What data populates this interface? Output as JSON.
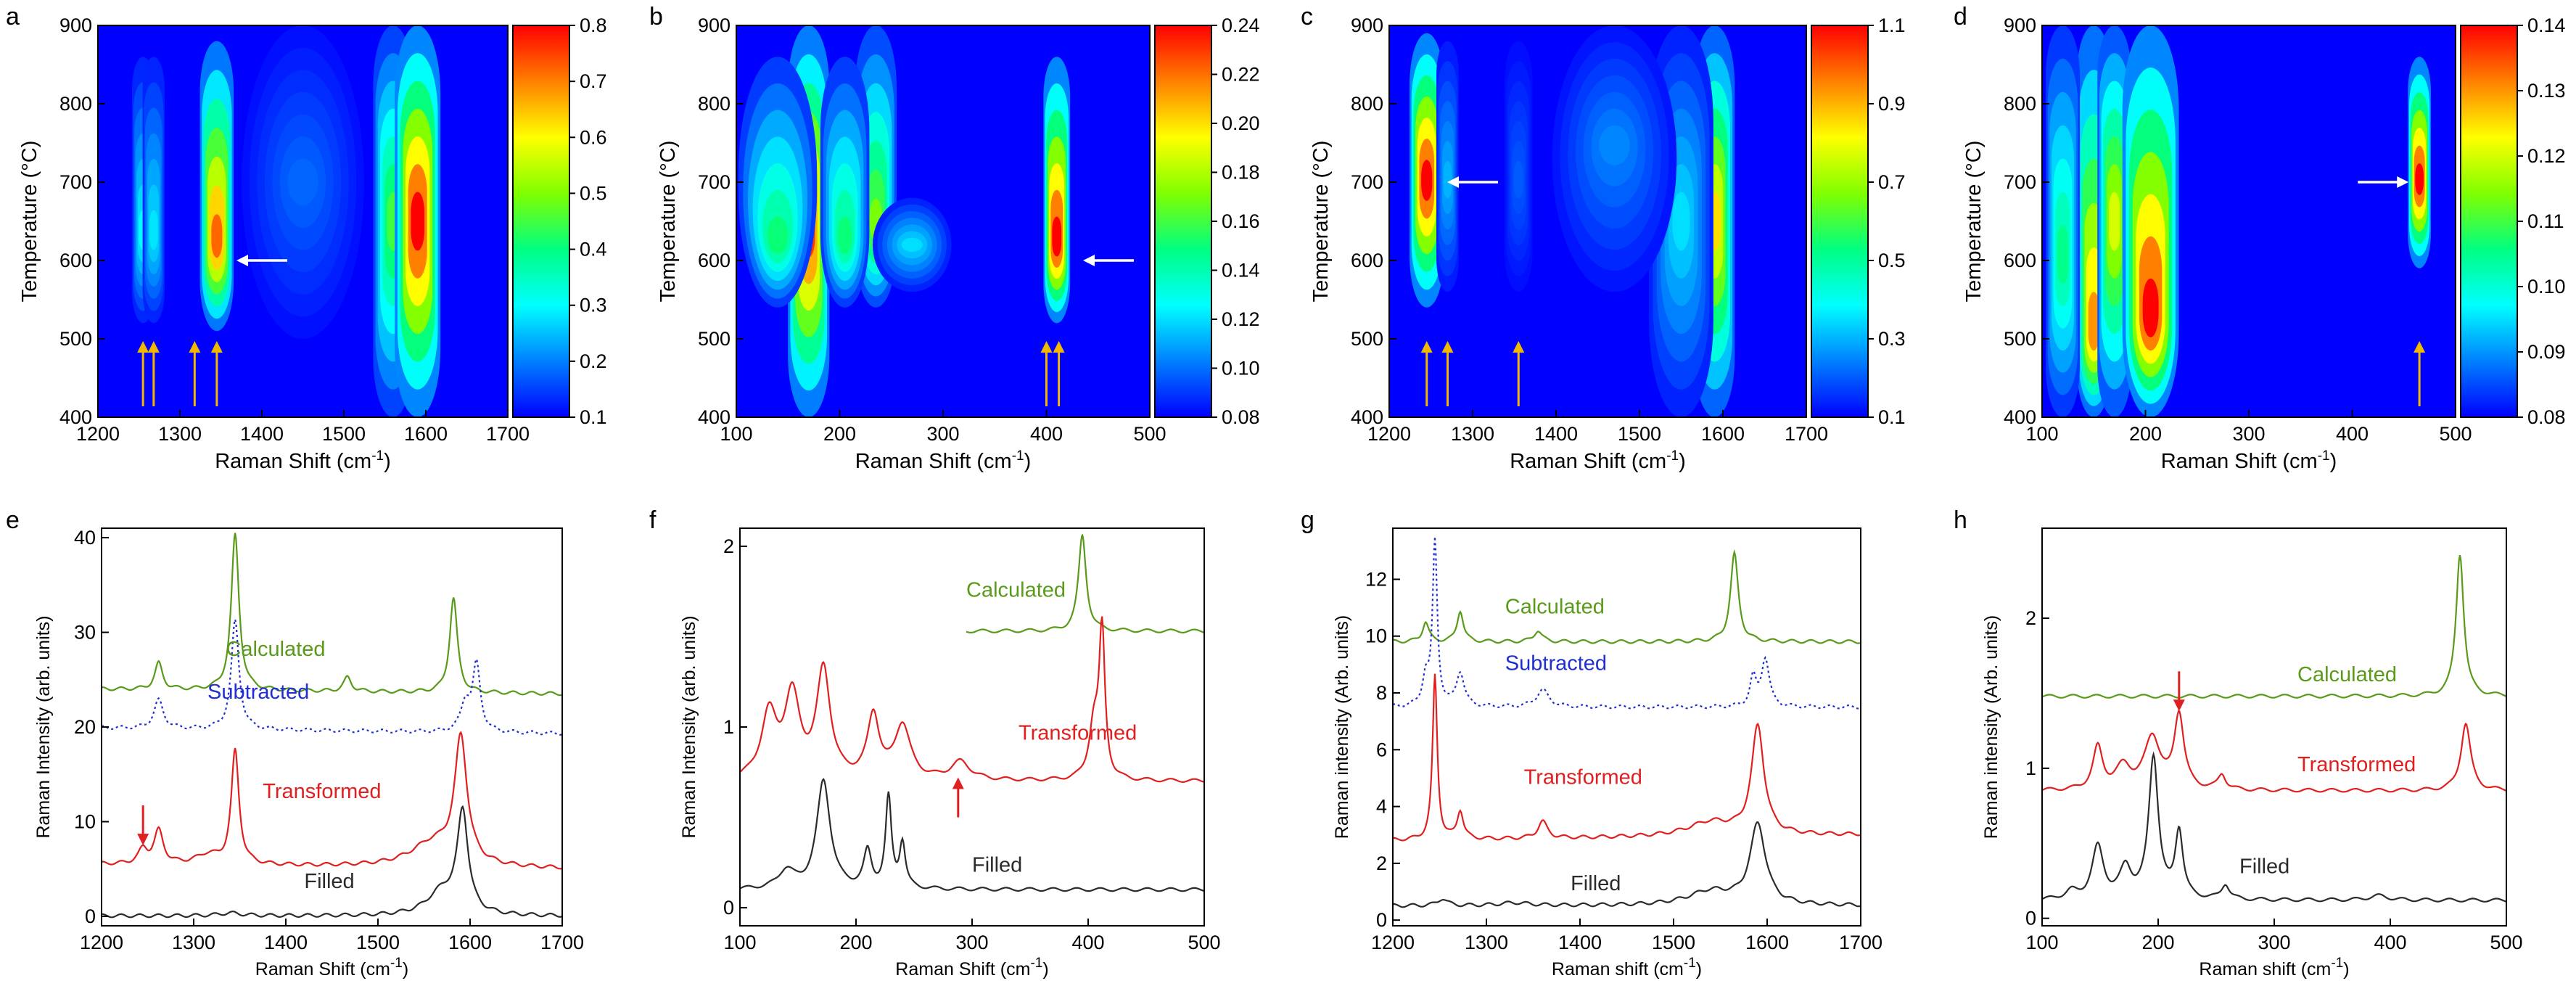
{
  "colormap": [
    "#0000ff",
    "#0080ff",
    "#00ffff",
    "#00ff80",
    "#80ff00",
    "#ffff00",
    "#ff8000",
    "#ff0000"
  ],
  "colors": {
    "calculated": "#5a9a1a",
    "subtracted": "#1f2fd0",
    "transformed": "#e02020",
    "filled": "#2b2b2b",
    "marker_arrow": "#f2b700",
    "red_arrow": "#e02020"
  },
  "chart_data": [
    {
      "panel": "a",
      "type": "heatmap",
      "xlabel": "Raman Shift (cm⁻¹)",
      "ylabel": "Temperature (°C)",
      "xlim": [
        1200,
        1700
      ],
      "ylim": [
        400,
        900
      ],
      "xticks": [
        "1200",
        "1300",
        "1400",
        "1500",
        "1600",
        "1700"
      ],
      "yticks": [
        "400",
        "500",
        "600",
        "700",
        "800",
        "900"
      ],
      "colorbar": {
        "range": [
          0.1,
          0.8
        ],
        "ticks": [
          "0.1",
          "0.2",
          "0.3",
          "0.4",
          "0.5",
          "0.6",
          "0.7",
          "0.8"
        ]
      },
      "bands": [
        {
          "x": 1255,
          "width": 6,
          "tmin": 520,
          "tmax": 860,
          "peak": 0.3,
          "peak_t": 630
        },
        {
          "x": 1268,
          "width": 6,
          "tmin": 520,
          "tmax": 860,
          "peak": 0.28,
          "peak_t": 630
        },
        {
          "x": 1345,
          "width": 10,
          "tmin": 510,
          "tmax": 880,
          "peak": 0.72,
          "peak_t": 620
        },
        {
          "x": 1560,
          "width": 12,
          "tmin": 400,
          "tmax": 900,
          "peak": 0.45,
          "peak_t": 650
        },
        {
          "x": 1590,
          "width": 14,
          "tmin": 400,
          "tmax": 900,
          "peak": 0.8,
          "peak_t": 650
        },
        {
          "x": 1450,
          "width": 40,
          "tmin": 500,
          "tmax": 900,
          "peak": 0.18,
          "peak_t": 700
        }
      ],
      "white_arrows": [
        {
          "x": 1400,
          "t": 600,
          "dir": "left"
        }
      ],
      "marker_arrows": [
        1255,
        1268,
        1318,
        1345
      ]
    },
    {
      "panel": "b",
      "type": "heatmap",
      "xlabel": "Raman Shift (cm⁻¹)",
      "ylabel": "Temperature (°C)",
      "xlim": [
        100,
        500
      ],
      "ylim": [
        400,
        900
      ],
      "xticks": [
        "100",
        "200",
        "300",
        "400",
        "500"
      ],
      "yticks": [
        "400",
        "500",
        "600",
        "700",
        "800",
        "900"
      ],
      "colorbar": {
        "range": [
          0.08,
          0.24
        ],
        "ticks": [
          "0.08",
          "0.10",
          "0.12",
          "0.14",
          "0.16",
          "0.18",
          "0.20",
          "0.22",
          "0.24"
        ]
      },
      "bands": [
        {
          "x": 170,
          "width": 10,
          "tmin": 400,
          "tmax": 900,
          "peak": 0.23,
          "peak_t": 640
        },
        {
          "x": 235,
          "width": 10,
          "tmin": 540,
          "tmax": 900,
          "peak": 0.17,
          "peak_t": 640
        },
        {
          "x": 140,
          "width": 20,
          "tmin": 540,
          "tmax": 860,
          "peak": 0.15,
          "peak_t": 620
        },
        {
          "x": 205,
          "width": 12,
          "tmin": 540,
          "tmax": 860,
          "peak": 0.15,
          "peak_t": 620
        },
        {
          "x": 410,
          "width": 6,
          "tmin": 520,
          "tmax": 860,
          "peak": 0.24,
          "peak_t": 620
        },
        {
          "x": 270,
          "width": 20,
          "tmin": 560,
          "tmax": 680,
          "peak": 0.12,
          "peak_t": 620
        }
      ],
      "white_arrows": [
        {
          "x": 460,
          "t": 600,
          "dir": "left"
        }
      ],
      "marker_arrows": [
        400,
        412
      ]
    },
    {
      "panel": "c",
      "type": "heatmap",
      "xlabel": "Raman Shift (cm⁻¹)",
      "ylabel": "Temperature (°C)",
      "xlim": [
        1200,
        1700
      ],
      "ylim": [
        400,
        900
      ],
      "xticks": [
        "1200",
        "1300",
        "1400",
        "1500",
        "1600",
        "1700"
      ],
      "yticks": [
        "400",
        "500",
        "600",
        "700",
        "800",
        "900"
      ],
      "colorbar": {
        "range": [
          0.1,
          1.1
        ],
        "ticks": [
          "0.1",
          "0.3",
          "0.5",
          "0.7",
          "0.9",
          "1.1"
        ]
      },
      "bands": [
        {
          "x": 1245,
          "width": 10,
          "tmin": 540,
          "tmax": 890,
          "peak": 1.1,
          "peak_t": 700
        },
        {
          "x": 1270,
          "width": 6,
          "tmin": 560,
          "tmax": 880,
          "peak": 0.3,
          "peak_t": 700
        },
        {
          "x": 1355,
          "width": 8,
          "tmin": 560,
          "tmax": 880,
          "peak": 0.2,
          "peak_t": 700
        },
        {
          "x": 1590,
          "width": 12,
          "tmin": 400,
          "tmax": 900,
          "peak": 0.85,
          "peak_t": 650
        },
        {
          "x": 1550,
          "width": 20,
          "tmin": 400,
          "tmax": 900,
          "peak": 0.35,
          "peak_t": 650
        },
        {
          "x": 1470,
          "width": 40,
          "tmin": 560,
          "tmax": 900,
          "peak": 0.25,
          "peak_t": 750
        }
      ],
      "white_arrows": [
        {
          "x": 1300,
          "t": 700,
          "dir": "left"
        }
      ],
      "marker_arrows": [
        1245,
        1270,
        1355
      ]
    },
    {
      "panel": "d",
      "type": "heatmap",
      "xlabel": "Raman Shift (cm⁻¹)",
      "ylabel": "Temperature (°C)",
      "xlim": [
        100,
        500
      ],
      "ylim": [
        400,
        900
      ],
      "xticks": [
        "100",
        "200",
        "300",
        "400",
        "500"
      ],
      "yticks": [
        "400",
        "500",
        "600",
        "700",
        "800",
        "900"
      ],
      "colorbar": {
        "range": [
          0.08,
          0.14
        ],
        "ticks": [
          "0.08",
          "0.09",
          "0.10",
          "0.11",
          "0.12",
          "0.13",
          "0.14"
        ]
      },
      "bands": [
        {
          "x": 150,
          "width": 8,
          "tmin": 400,
          "tmax": 900,
          "peak": 0.13,
          "peak_t": 500
        },
        {
          "x": 170,
          "width": 8,
          "tmin": 400,
          "tmax": 900,
          "peak": 0.12,
          "peak_t": 650
        },
        {
          "x": 205,
          "width": 14,
          "tmin": 400,
          "tmax": 900,
          "peak": 0.14,
          "peak_t": 520
        },
        {
          "x": 120,
          "width": 8,
          "tmin": 400,
          "tmax": 900,
          "peak": 0.105,
          "peak_t": 600
        },
        {
          "x": 465,
          "width": 5,
          "tmin": 590,
          "tmax": 860,
          "peak": 0.14,
          "peak_t": 700
        }
      ],
      "white_arrows": [
        {
          "x": 430,
          "t": 700,
          "dir": "right"
        }
      ],
      "marker_arrows": [
        465
      ]
    },
    {
      "panel": "e",
      "type": "line",
      "xlabel": "Raman Shift (cm⁻¹)",
      "ylabel": "Raman Intensity (arb. units)",
      "xlim": [
        1200,
        1700
      ],
      "ylim": [
        -1,
        41
      ],
      "xticks": [
        "1200",
        "1300",
        "1400",
        "1500",
        "1600",
        "1700"
      ],
      "yticks": [
        {
          "v": 0,
          "t": "0"
        },
        {
          "v": 10,
          "t": "10"
        },
        {
          "v": 20,
          "t": "20"
        },
        {
          "v": 30,
          "t": "30"
        },
        {
          "v": 40,
          "t": "40"
        }
      ],
      "series": [
        {
          "name": "Calculated",
          "style": "solid",
          "color_key": "calculated",
          "base": 23.5,
          "tilt": 1.0,
          "peaks": [
            [
              1262,
              2.8,
              5
            ],
            [
              1345,
              16.5,
              5
            ],
            [
              1467,
              1.5,
              5
            ],
            [
              1582,
              10,
              5
            ]
          ],
          "label_x": 1335,
          "label_y": 27.5
        },
        {
          "name": "Subtracted",
          "style": "dotted",
          "color_key": "subtracted",
          "base": 19.3,
          "tilt": 1.2,
          "peaks": [
            [
              1262,
              3,
              6
            ],
            [
              1345,
              11.5,
              5
            ],
            [
              1595,
              3,
              6
            ],
            [
              1607,
              7,
              5
            ]
          ],
          "label_x": 1315,
          "label_y": 23
        },
        {
          "name": "Transformed",
          "style": "solid",
          "color_key": "transformed",
          "base": 5,
          "tilt": 1.0,
          "peaks": [
            [
              1245,
              1.5,
              6
            ],
            [
              1262,
              3.5,
              6
            ],
            [
              1345,
              12,
              5
            ],
            [
              1315,
              1,
              15
            ],
            [
              1560,
              2.5,
              30
            ],
            [
              1590,
              13,
              8
            ]
          ],
          "label_x": 1375,
          "label_y": 12.5
        },
        {
          "name": "Filled",
          "style": "solid",
          "color_key": "filled",
          "base": 0,
          "tilt": 0.1,
          "peaks": [
            [
              1340,
              0.3,
              15
            ],
            [
              1570,
              2.5,
              20
            ],
            [
              1592,
              10.5,
              7
            ]
          ],
          "label_x": 1420,
          "label_y": 3
        }
      ],
      "red_arrows": [
        {
          "x": 1245,
          "y": 7.5
        }
      ]
    },
    {
      "panel": "f",
      "type": "line",
      "xlabel": "Raman Shift (cm⁻¹)",
      "ylabel": "Raman Intensity (arb. units)",
      "xlim": [
        100,
        500
      ],
      "ylim": [
        -0.1,
        2.1
      ],
      "xticks": [
        "100",
        "200",
        "300",
        "400",
        "500"
      ],
      "yticks": [
        {
          "v": 0,
          "t": "0"
        },
        {
          "v": 1,
          "t": "1"
        },
        {
          "v": 2,
          "t": "2"
        }
      ],
      "series": [
        {
          "name": "Calculated",
          "style": "solid",
          "color_key": "calculated",
          "base": 1.53,
          "tilt": 0,
          "xstart": 295,
          "peaks": [
            [
              395,
              0.53,
              4
            ]
          ],
          "label_x": 295,
          "label_y": 1.72
        },
        {
          "name": "Transformed",
          "style": "solid",
          "color_key": "transformed",
          "base": 0.7,
          "tilt": 0,
          "peaks": [
            [
              125,
              0.35,
              8
            ],
            [
              145,
              0.45,
              8
            ],
            [
              172,
              0.6,
              7
            ],
            [
              215,
              0.35,
              6
            ],
            [
              240,
              0.3,
              8
            ],
            [
              290,
              0.1,
              10
            ],
            [
              405,
              0.3,
              5
            ],
            [
              412,
              0.8,
              3
            ]
          ],
          "label_x": 340,
          "label_y": 0.93
        },
        {
          "name": "Filled",
          "style": "solid",
          "color_key": "filled",
          "base": 0.1,
          "tilt": 0,
          "peaks": [
            [
              140,
              0.1,
              8
            ],
            [
              172,
              0.6,
              7
            ],
            [
              210,
              0.2,
              4
            ],
            [
              228,
              0.5,
              3
            ],
            [
              240,
              0.25,
              3
            ]
          ],
          "label_x": 300,
          "label_y": 0.2
        }
      ],
      "red_arrows": [
        {
          "x": 288,
          "y": 0.5
        }
      ]
    },
    {
      "panel": "g",
      "type": "line",
      "xlabel": "Raman shift (cm⁻¹)",
      "ylabel": "Raman intensity (Arb. units)",
      "xlim": [
        1200,
        1700
      ],
      "ylim": [
        -0.2,
        13.8
      ],
      "xticks": [
        "1200",
        "1300",
        "1400",
        "1500",
        "1600",
        "1700"
      ],
      "yticks": [
        {
          "v": 0,
          "t": "0"
        },
        {
          "v": 2,
          "t": "2"
        },
        {
          "v": 4,
          "t": "4"
        },
        {
          "v": 6,
          "t": "6"
        },
        {
          "v": 8,
          "t": "8"
        },
        {
          "v": 10,
          "t": "10"
        },
        {
          "v": 12,
          "t": "12"
        }
      ],
      "series": [
        {
          "name": "Calculated",
          "style": "solid",
          "color_key": "calculated",
          "base": 9.8,
          "tilt": 0,
          "peaks": [
            [
              1235,
              0.7,
              4
            ],
            [
              1272,
              1.1,
              4
            ],
            [
              1355,
              0.4,
              5
            ],
            [
              1565,
              3.1,
              5
            ]
          ],
          "label_x": 1320,
          "label_y": 10.8
        },
        {
          "name": "Subtracted",
          "style": "dotted",
          "color_key": "subtracted",
          "base": 7.5,
          "tilt": 0,
          "peaks": [
            [
              1235,
              1,
              4
            ],
            [
              1245,
              5.8,
              3
            ],
            [
              1272,
              1.2,
              5
            ],
            [
              1360,
              0.6,
              8
            ],
            [
              1585,
              1,
              4
            ],
            [
              1598,
              1.7,
              5
            ]
          ],
          "label_x": 1320,
          "label_y": 8.8
        },
        {
          "name": "Transformed",
          "style": "solid",
          "color_key": "transformed",
          "base": 3,
          "tilt": -0.4,
          "peaks": [
            [
              1245,
              5.8,
              3
            ],
            [
              1272,
              1,
              4
            ],
            [
              1360,
              0.6,
              6
            ],
            [
              1540,
              0.5,
              30
            ],
            [
              1590,
              3.8,
              8
            ]
          ],
          "label_x": 1340,
          "label_y": 4.8
        },
        {
          "name": "Filled",
          "style": "solid",
          "color_key": "filled",
          "base": 0.5,
          "tilt": 0,
          "peaks": [
            [
              1253,
              0.25,
              6
            ],
            [
              1330,
              0.1,
              20
            ],
            [
              1540,
              0.5,
              30
            ],
            [
              1590,
              2.8,
              10
            ]
          ],
          "label_x": 1390,
          "label_y": 1.05
        }
      ],
      "red_arrows": []
    },
    {
      "panel": "h",
      "type": "line",
      "xlabel": "Raman shift (cm⁻¹)",
      "ylabel": "Raman intensity (Arb. units)",
      "xlim": [
        100,
        500
      ],
      "ylim": [
        -0.05,
        2.6
      ],
      "xticks": [
        "100",
        "200",
        "300",
        "400",
        "500"
      ],
      "yticks": [
        {
          "v": 0,
          "t": "0"
        },
        {
          "v": 1,
          "t": "1"
        },
        {
          "v": 2,
          "t": "2"
        }
      ],
      "series": [
        {
          "name": "Calculated",
          "style": "solid",
          "color_key": "calculated",
          "base": 1.48,
          "tilt": 0,
          "peaks": [
            [
              460,
              0.95,
              4
            ]
          ],
          "label_x": 320,
          "label_y": 1.58
        },
        {
          "name": "Transformed",
          "style": "solid",
          "color_key": "transformed",
          "base": 0.85,
          "tilt": 0,
          "peaks": [
            [
              148,
              0.28,
              5
            ],
            [
              170,
              0.15,
              8
            ],
            [
              195,
              0.35,
              8
            ],
            [
              218,
              0.5,
              5
            ],
            [
              255,
              0.1,
              4
            ],
            [
              465,
              0.45,
              5
            ]
          ],
          "label_x": 320,
          "label_y": 0.98
        },
        {
          "name": "Filled",
          "style": "solid",
          "color_key": "filled",
          "base": 0.12,
          "tilt": 0,
          "peaks": [
            [
              125,
              0.05,
              6
            ],
            [
              148,
              0.35,
              6
            ],
            [
              172,
              0.2,
              6
            ],
            [
              196,
              0.95,
              5
            ],
            [
              218,
              0.45,
              4
            ],
            [
              258,
              0.1,
              4
            ],
            [
              390,
              0.03,
              10
            ]
          ],
          "label_x": 270,
          "label_y": 0.3
        }
      ],
      "red_arrows": [
        {
          "x": 218,
          "y": 1.38
        }
      ]
    }
  ]
}
